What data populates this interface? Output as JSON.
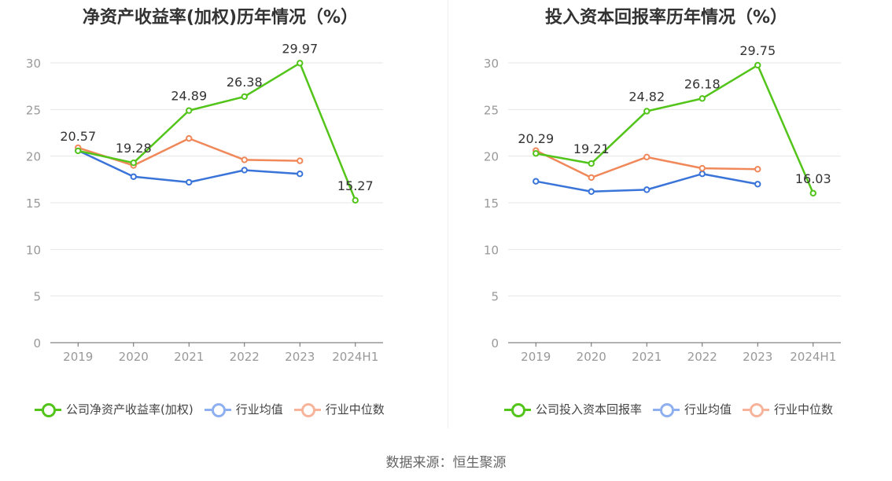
{
  "source_text": "数据来源：恒生聚源",
  "colors": {
    "company": "#52c41a",
    "industry_avg": "#3a74d8",
    "industry_median": "#f0885a",
    "legend_avg": "#8fb0f0",
    "legend_median": "#f7b49a",
    "grid": "#e6e6e6",
    "axis": "#999999"
  },
  "chart_data": [
    {
      "type": "line",
      "title": "净资产收益率(加权)历年情况（%）",
      "categories": [
        "2019",
        "2020",
        "2021",
        "2022",
        "2023",
        "2024H1"
      ],
      "ylim": [
        0,
        30
      ],
      "yticks": [
        "0",
        "5",
        "10",
        "15",
        "20",
        "25",
        "30"
      ],
      "series": [
        {
          "name": "公司净资产收益率(加权)",
          "values": [
            20.57,
            19.28,
            24.89,
            26.38,
            29.97,
            15.27
          ],
          "labels": [
            "20.57",
            "19.28",
            "24.89",
            "26.38",
            "29.97",
            "15.27"
          ]
        },
        {
          "name": "行业均值",
          "values": [
            20.6,
            17.8,
            17.2,
            18.5,
            18.1,
            null
          ]
        },
        {
          "name": "行业中位数",
          "values": [
            20.9,
            19.0,
            21.9,
            19.6,
            19.5,
            null
          ]
        }
      ]
    },
    {
      "type": "line",
      "title": "投入资本回报率历年情况（%）",
      "categories": [
        "2019",
        "2020",
        "2021",
        "2022",
        "2023",
        "2024H1"
      ],
      "ylim": [
        0,
        30
      ],
      "yticks": [
        "0",
        "5",
        "10",
        "15",
        "20",
        "25",
        "30"
      ],
      "series": [
        {
          "name": "公司投入资本回报率",
          "values": [
            20.29,
            19.21,
            24.82,
            26.18,
            29.75,
            16.03
          ],
          "labels": [
            "20.29",
            "19.21",
            "24.82",
            "26.18",
            "29.75",
            "16.03"
          ]
        },
        {
          "name": "行业均值",
          "values": [
            17.3,
            16.2,
            16.4,
            18.1,
            17.0,
            null
          ]
        },
        {
          "name": "行业中位数",
          "values": [
            20.6,
            17.7,
            19.9,
            18.7,
            18.6,
            null
          ]
        }
      ]
    }
  ]
}
